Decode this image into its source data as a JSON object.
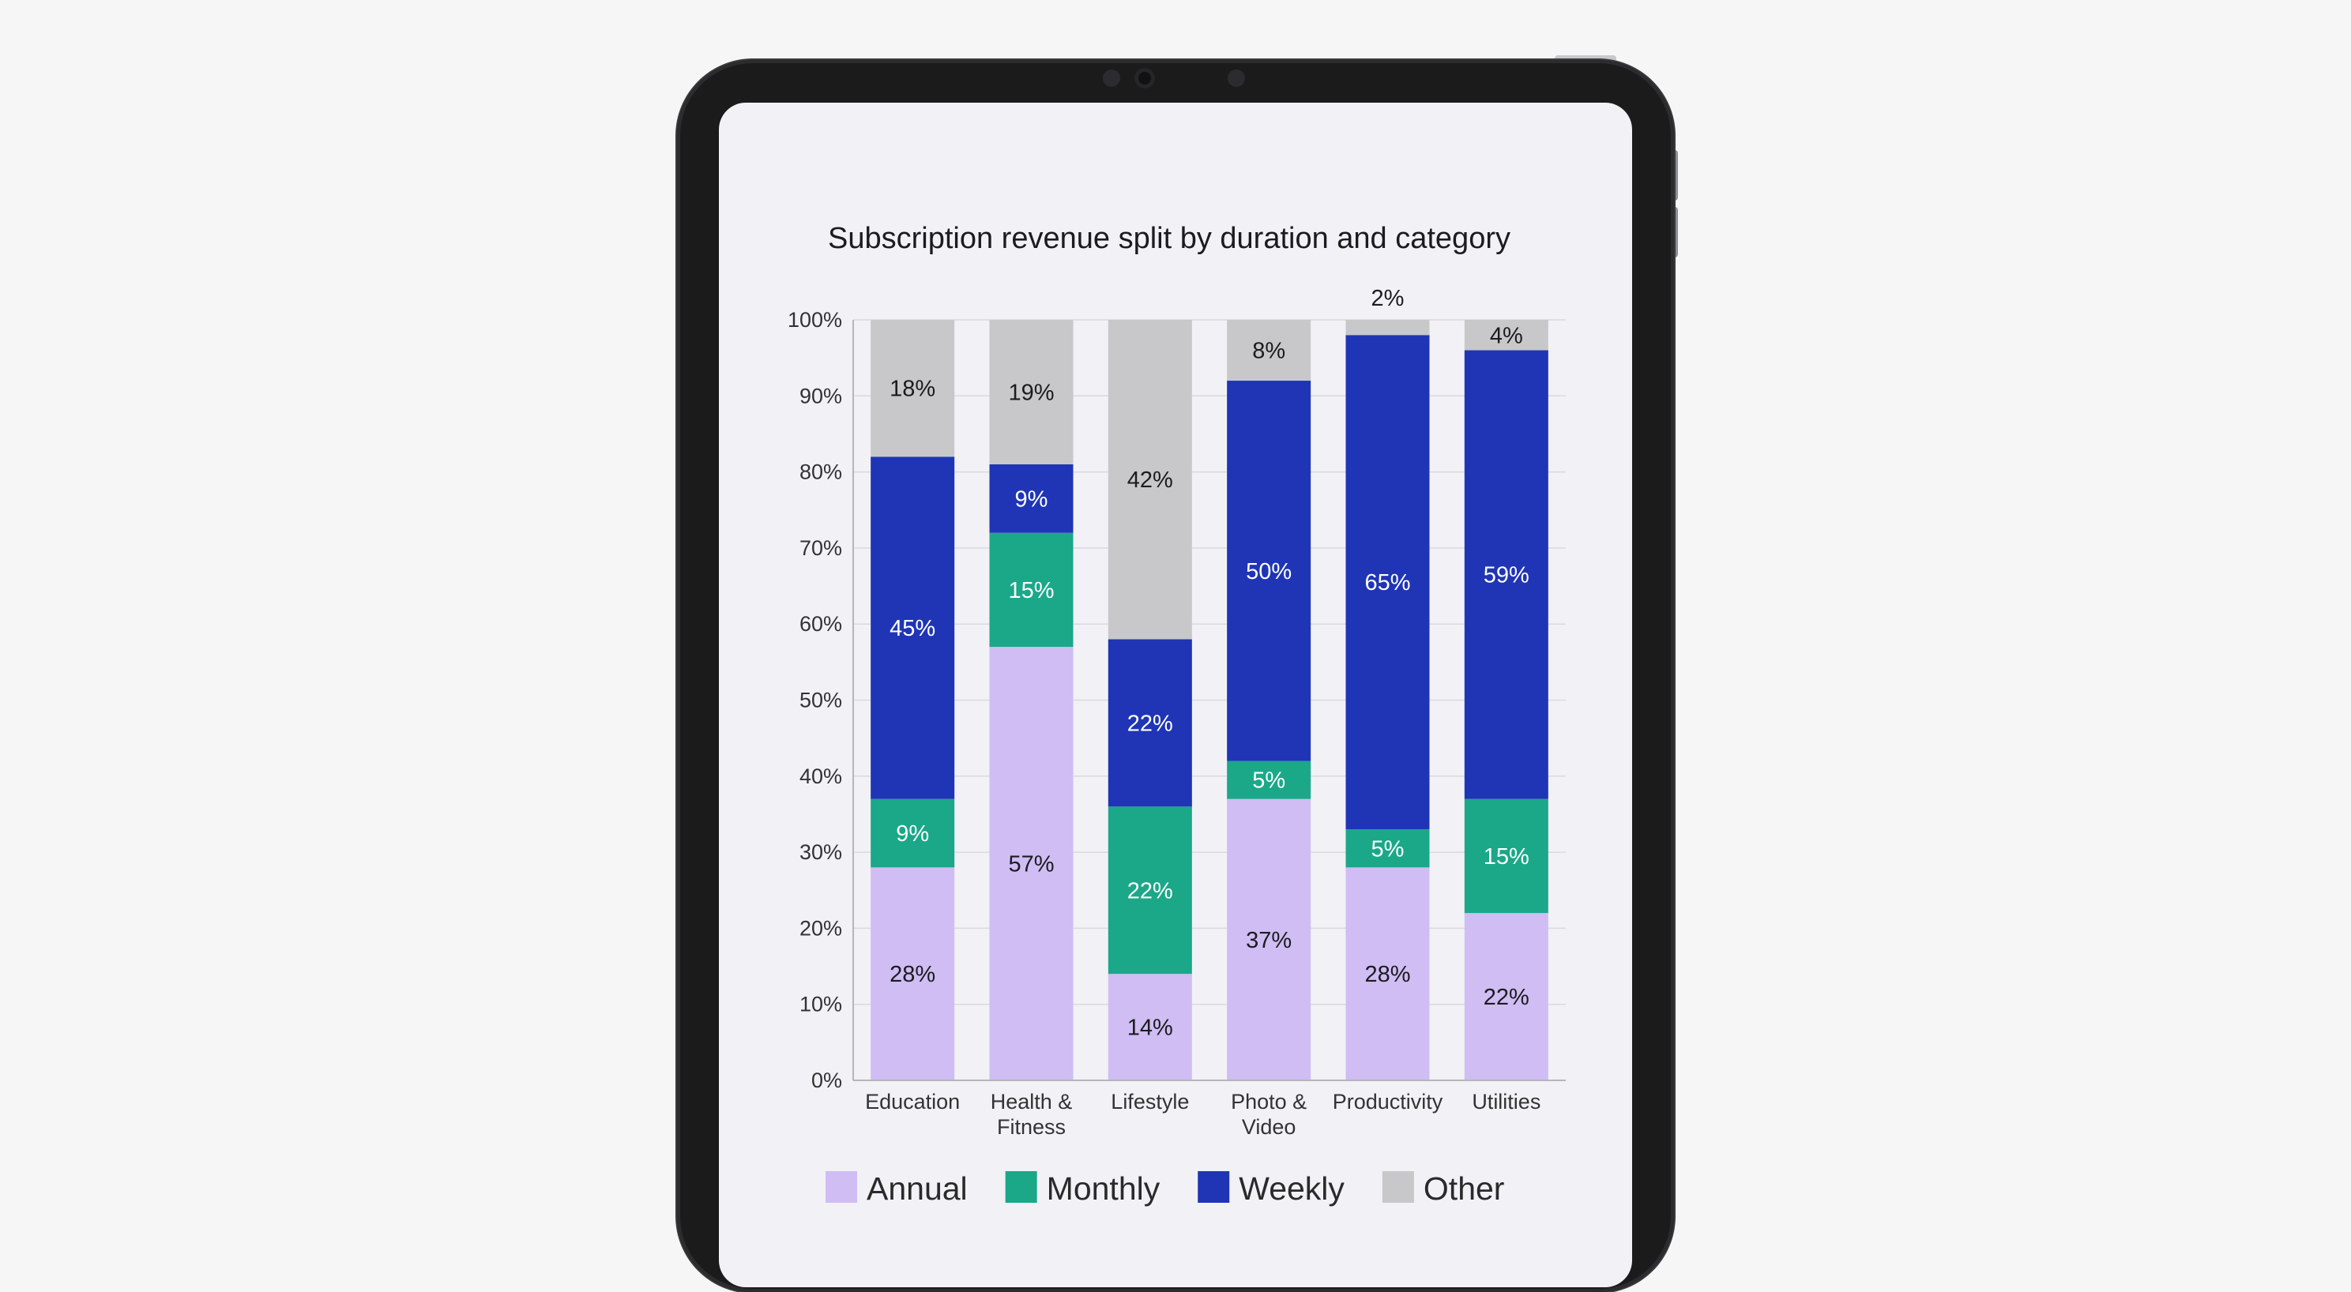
{
  "chart_data": {
    "type": "bar",
    "stacked": true,
    "title": "Subscription revenue split by duration and category",
    "categories": [
      [
        "Education"
      ],
      [
        "Health &",
        "Fitness"
      ],
      [
        "Lifestyle"
      ],
      [
        "Photo &",
        "Video"
      ],
      [
        "Productivity"
      ],
      [
        "Utilities"
      ]
    ],
    "series": [
      {
        "name": "Annual",
        "color": "#cfbdf4",
        "label_color": "#1c1c1e",
        "values": [
          28,
          57,
          14,
          37,
          28,
          22
        ],
        "labels": [
          "28%",
          "57%",
          "14%",
          "37%",
          "28%",
          "22%"
        ]
      },
      {
        "name": "Monthly",
        "color": "#1aa889",
        "label_color": "#ffffff",
        "values": [
          9,
          15,
          22,
          5,
          5,
          15
        ],
        "labels": [
          "9%",
          "15%",
          "22%",
          "5%",
          "5%",
          "15%"
        ]
      },
      {
        "name": "Weekly",
        "color": "#1f35b6",
        "label_color": "#ffffff",
        "values": [
          45,
          9,
          22,
          50,
          65,
          59
        ],
        "labels": [
          "45%",
          "9%",
          "22%",
          "50%",
          "65%",
          "59%"
        ]
      },
      {
        "name": "Other",
        "color": "#c8c8ca",
        "label_color": "#1c1c1e",
        "values": [
          18,
          19,
          42,
          8,
          2,
          4
        ],
        "labels": [
          "18%",
          "19%",
          "42%",
          "8%",
          "2%",
          "4%"
        ]
      }
    ],
    "y_ticks": [
      "0%",
      "10%",
      "20%",
      "30%",
      "40%",
      "50%",
      "60%",
      "70%",
      "80%",
      "90%",
      "100%"
    ],
    "ylim": [
      0,
      100
    ],
    "grid": true,
    "legend_position": "bottom"
  }
}
